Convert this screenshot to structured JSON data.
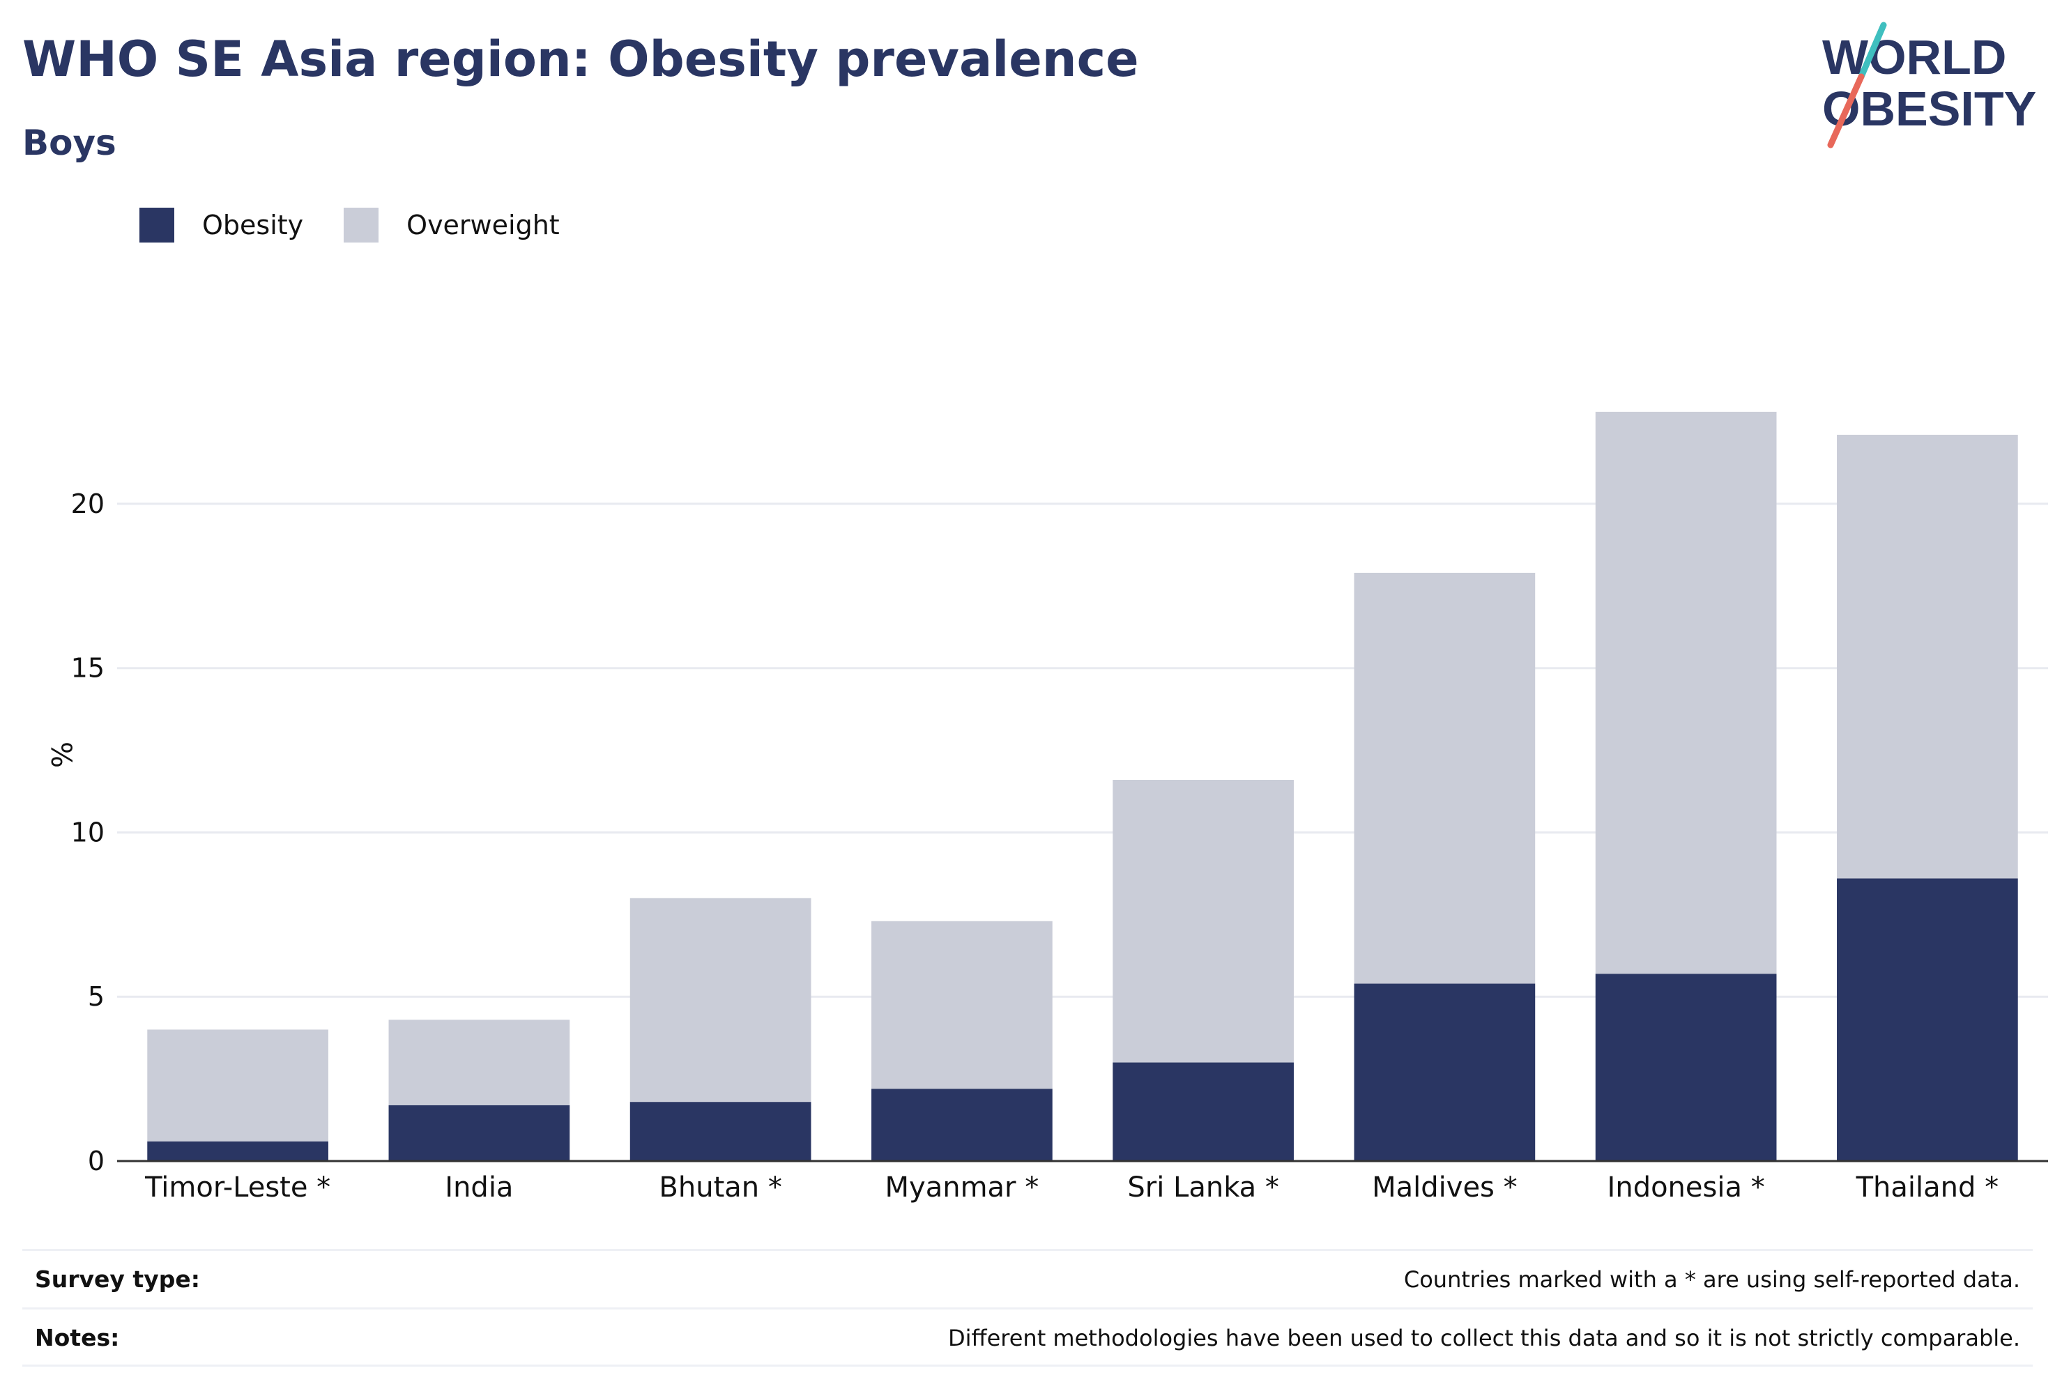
{
  "header": {
    "title": "WHO SE Asia region: Obesity prevalence",
    "subtitle": "Boys"
  },
  "logo": {
    "line1": "WORLD",
    "line2": "OBESITY",
    "colors": {
      "text": "#2a3663",
      "slash_top": "#3fbfbf",
      "slash_bottom": "#e8685a"
    }
  },
  "legend": {
    "items": [
      {
        "label": "Obesity",
        "color": "#2a3663"
      },
      {
        "label": "Overweight",
        "color": "#cacdd8"
      }
    ]
  },
  "chart_data": {
    "type": "bar",
    "stacked": true,
    "categories": [
      "Timor-Leste *",
      "India",
      "Bhutan *",
      "Myanmar *",
      "Sri Lanka *",
      "Maldives *",
      "Indonesia *",
      "Thailand *"
    ],
    "series": [
      {
        "name": "Obesity",
        "color": "#2a3663",
        "values": [
          0.6,
          1.7,
          1.8,
          2.2,
          3.0,
          5.4,
          5.7,
          8.6
        ]
      },
      {
        "name": "Overweight",
        "color": "#cacdd8",
        "values": [
          3.4,
          2.6,
          6.2,
          5.1,
          8.6,
          12.5,
          17.1,
          13.5
        ]
      }
    ],
    "ylabel": "%",
    "xlabel": "",
    "ylim": [
      0,
      26
    ],
    "yticks": [
      0,
      5,
      10,
      15,
      20
    ],
    "grid": true,
    "legend_position": "top-left"
  },
  "footer": {
    "survey_type_label": "Survey type:",
    "survey_type_text": "Countries marked with a * are using self-reported data.",
    "notes_label": "Notes:",
    "notes_text": "Different methodologies have been used to collect this data and so it is not strictly comparable."
  }
}
